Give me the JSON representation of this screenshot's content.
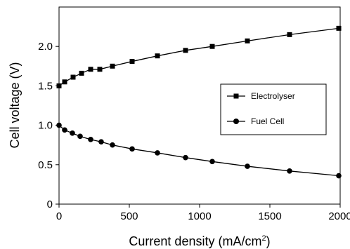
{
  "chart_data": {
    "type": "line",
    "xlabel": "Current density (mA/cm",
    "xlabel_superscript": "2",
    "xlabel_close": ")",
    "ylabel": "Cell voltage (V)",
    "xlim": [
      0,
      2000
    ],
    "ylim": [
      0,
      2.5
    ],
    "x_ticks": [
      "0",
      "500",
      "1000",
      "1500",
      "2000"
    ],
    "y_ticks": [
      "0",
      "0.5",
      "1.0",
      "1.5",
      "2.0"
    ],
    "x_tick_values": [
      0,
      500,
      1000,
      1500,
      2000
    ],
    "y_tick_values": [
      0,
      0.5,
      1.0,
      1.5,
      2.0
    ],
    "grid": false,
    "legend_position": "right",
    "series": [
      {
        "name": "Electrolyser",
        "marker": "square",
        "color": "#000000",
        "points": [
          [
            0,
            1.5
          ],
          [
            40,
            1.55
          ],
          [
            100,
            1.61
          ],
          [
            160,
            1.66
          ],
          [
            225,
            1.71
          ],
          [
            290,
            1.71
          ],
          [
            380,
            1.75
          ],
          [
            520,
            1.81
          ],
          [
            700,
            1.88
          ],
          [
            900,
            1.95
          ],
          [
            1090,
            2.0
          ],
          [
            1340,
            2.07
          ],
          [
            1640,
            2.15
          ],
          [
            1990,
            2.23
          ]
        ]
      },
      {
        "name": "Fuel Cell",
        "marker": "circle",
        "color": "#000000",
        "points": [
          [
            0,
            1.0
          ],
          [
            40,
            0.94
          ],
          [
            95,
            0.9
          ],
          [
            150,
            0.86
          ],
          [
            225,
            0.82
          ],
          [
            300,
            0.79
          ],
          [
            380,
            0.75
          ],
          [
            520,
            0.7
          ],
          [
            700,
            0.65
          ],
          [
            900,
            0.59
          ],
          [
            1090,
            0.54
          ],
          [
            1340,
            0.48
          ],
          [
            1640,
            0.42
          ],
          [
            1990,
            0.36
          ]
        ]
      }
    ]
  }
}
